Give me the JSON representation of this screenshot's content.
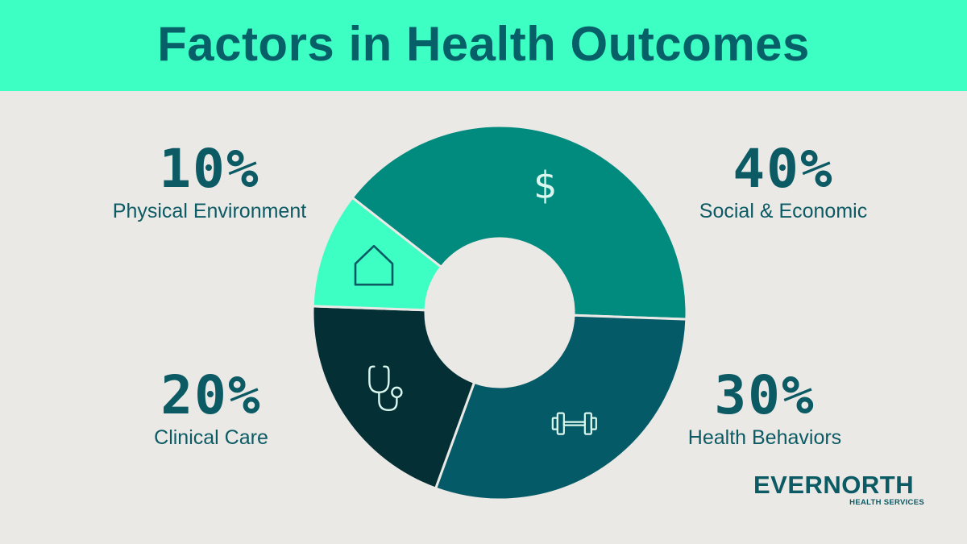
{
  "title": "Factors in Health Outcomes",
  "colors": {
    "banner": "#3dffc4",
    "title_text": "#075f67",
    "background": "#ebe9e6",
    "social_economic": "#018a7e",
    "health_behaviors": "#045a66",
    "clinical_care": "#032f35",
    "physical_environment": "#3dffc4",
    "icon_light": "#d9f7ee",
    "icon_dark": "#0b5a64"
  },
  "chart_data": {
    "type": "pie",
    "title": "Factors in Health Outcomes",
    "donut": true,
    "categories": [
      "Social & Economic",
      "Health Behaviors",
      "Clinical Care",
      "Physical Environment"
    ],
    "values": [
      40,
      30,
      20,
      10
    ],
    "value_labels": [
      "40%",
      "30%",
      "20%",
      "10%"
    ],
    "icons": [
      "dollar-icon",
      "dumbbell-icon",
      "stethoscope-icon",
      "house-icon"
    ],
    "colors": [
      "#018a7e",
      "#045a66",
      "#032f35",
      "#3dffc4"
    ]
  },
  "logo": {
    "brand": "EVERNORTH",
    "sub": "HEALTH SERVICES"
  }
}
